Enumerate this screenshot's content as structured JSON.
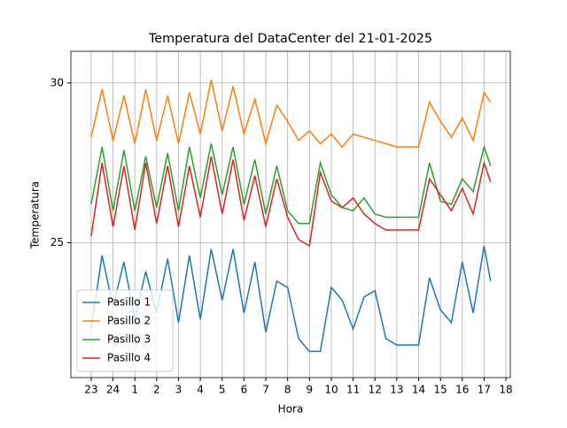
{
  "chart_data": {
    "type": "line",
    "title": "Temperatura del DataCenter del 21-01-2025",
    "x_label": "Hora",
    "y_label": "Temperatura",
    "x": [
      23,
      23.5,
      24,
      24.5,
      25,
      25.5,
      26,
      26.5,
      27,
      27.5,
      28,
      28.5,
      29,
      29.5,
      30,
      30.5,
      31,
      31.5,
      32,
      32.5,
      33,
      33.5,
      34,
      34.5,
      35,
      35.5,
      36,
      36.5,
      37,
      37.5,
      38,
      38.5,
      39,
      39.5,
      40,
      40.5,
      41,
      41.3
    ],
    "series": [
      {
        "name": "Pasillo 1",
        "color": "#1f77b4",
        "values": [
          22.3,
          24.6,
          23.0,
          24.4,
          22.6,
          24.1,
          22.8,
          24.5,
          22.5,
          24.6,
          22.6,
          24.8,
          23.2,
          24.8,
          22.8,
          24.4,
          22.2,
          23.8,
          23.6,
          22.0,
          21.6,
          21.6,
          23.6,
          23.2,
          22.3,
          23.3,
          23.5,
          22.0,
          21.8,
          21.8,
          21.8,
          23.9,
          22.9,
          22.5,
          24.4,
          22.8,
          24.9,
          23.8
        ]
      },
      {
        "name": "Pasillo 2",
        "color": "#ff7f0e",
        "values": [
          28.3,
          29.8,
          28.2,
          29.6,
          28.1,
          29.8,
          28.2,
          29.6,
          28.1,
          29.7,
          28.4,
          30.1,
          28.5,
          29.9,
          28.4,
          29.5,
          28.1,
          29.3,
          28.8,
          28.2,
          28.5,
          28.1,
          28.4,
          28.0,
          28.4,
          28.3,
          28.2,
          28.1,
          28.0,
          28.0,
          28.0,
          29.4,
          28.8,
          28.3,
          28.9,
          28.2,
          29.7,
          29.4
        ]
      },
      {
        "name": "Pasillo 3",
        "color": "#2ca02c",
        "values": [
          26.2,
          28.0,
          26.0,
          27.9,
          26.0,
          27.7,
          26.1,
          27.8,
          26.0,
          28.0,
          26.4,
          28.1,
          26.5,
          28.0,
          26.2,
          27.6,
          25.9,
          27.4,
          26.0,
          25.6,
          25.6,
          27.5,
          26.5,
          26.1,
          26.0,
          26.4,
          25.9,
          25.8,
          25.8,
          25.8,
          25.8,
          27.5,
          26.3,
          26.2,
          27.0,
          26.6,
          28.0,
          27.4
        ]
      },
      {
        "name": "Pasillo 4",
        "color": "#d62728",
        "values": [
          25.2,
          27.5,
          25.5,
          27.4,
          25.4,
          27.5,
          25.6,
          27.4,
          25.5,
          27.4,
          25.8,
          27.7,
          25.9,
          27.6,
          25.7,
          27.1,
          25.5,
          27.0,
          25.8,
          25.1,
          24.9,
          27.2,
          26.3,
          26.1,
          26.4,
          25.9,
          25.6,
          25.4,
          25.4,
          25.4,
          25.4,
          27.0,
          26.5,
          26.0,
          26.7,
          25.9,
          27.5,
          26.9
        ]
      }
    ],
    "xlim": [
      22.07,
      42.2
    ],
    "ylim": [
      20.78,
      30.99
    ],
    "xticks": [
      23,
      24,
      {
        "value": 25,
        "label": "1"
      },
      {
        "value": 26,
        "label": "2"
      },
      {
        "value": 27,
        "label": "3"
      },
      {
        "value": 28,
        "label": "4"
      },
      {
        "value": 29,
        "label": "5"
      },
      {
        "value": 30,
        "label": "6"
      },
      {
        "value": 31,
        "label": "7"
      },
      {
        "value": 32,
        "label": "8"
      },
      {
        "value": 33,
        "label": "9"
      },
      {
        "value": 34,
        "label": "10"
      },
      {
        "value": 35,
        "label": "11"
      },
      {
        "value": 36,
        "label": "12"
      },
      {
        "value": 37,
        "label": "13"
      },
      {
        "value": 38,
        "label": "14"
      },
      {
        "value": 39,
        "label": "15"
      },
      {
        "value": 40,
        "label": "16"
      },
      {
        "value": 41,
        "label": "17"
      },
      {
        "value": 42,
        "label": "18"
      }
    ],
    "yticks": [
      25,
      30
    ],
    "grid": true,
    "legend": "lower left"
  }
}
